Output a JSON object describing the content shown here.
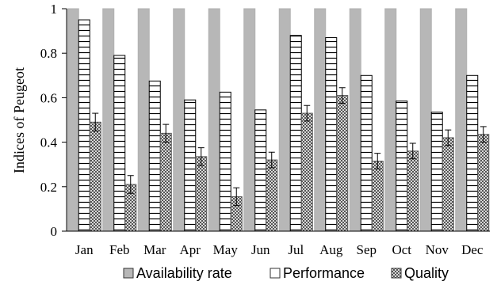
{
  "chart_data": {
    "type": "bar",
    "title": "",
    "xlabel": "",
    "ylabel": "Indices of  Peugeot",
    "ylim": [
      0,
      1
    ],
    "yticks": [
      "0",
      "0.2",
      "0.4",
      "0.6",
      "0.8",
      "1"
    ],
    "ytick_values": [
      0,
      0.2,
      0.4,
      0.6,
      0.8,
      1
    ],
    "grid": false,
    "legend_position": "bottom",
    "categories": [
      "Jan",
      "Feb",
      "Mar",
      "Apr",
      "May",
      "Jun",
      "Jul",
      "Aug",
      "Sep",
      "Oct",
      "Nov",
      "Dec"
    ],
    "series": [
      {
        "name": "Availability rate",
        "pattern": "solid-gray",
        "color": "#b7b7b7",
        "values": [
          1,
          1,
          1,
          1,
          1,
          1,
          1,
          1,
          1,
          1,
          1,
          1
        ]
      },
      {
        "name": "Performance",
        "pattern": "horizontal-lines",
        "color": "#ffffff",
        "values": [
          0.95,
          0.79,
          0.675,
          0.59,
          0.625,
          0.545,
          0.88,
          0.87,
          0.7,
          0.585,
          0.535,
          0.7
        ]
      },
      {
        "name": "Quality",
        "pattern": "checkered",
        "color": "#8a8a8a",
        "values": [
          0.49,
          0.21,
          0.44,
          0.335,
          0.155,
          0.32,
          0.53,
          0.61,
          0.315,
          0.36,
          0.42,
          0.435
        ],
        "error": [
          0.04,
          0.04,
          0.04,
          0.04,
          0.04,
          0.035,
          0.035,
          0.035,
          0.035,
          0.035,
          0.035,
          0.035
        ]
      }
    ]
  }
}
